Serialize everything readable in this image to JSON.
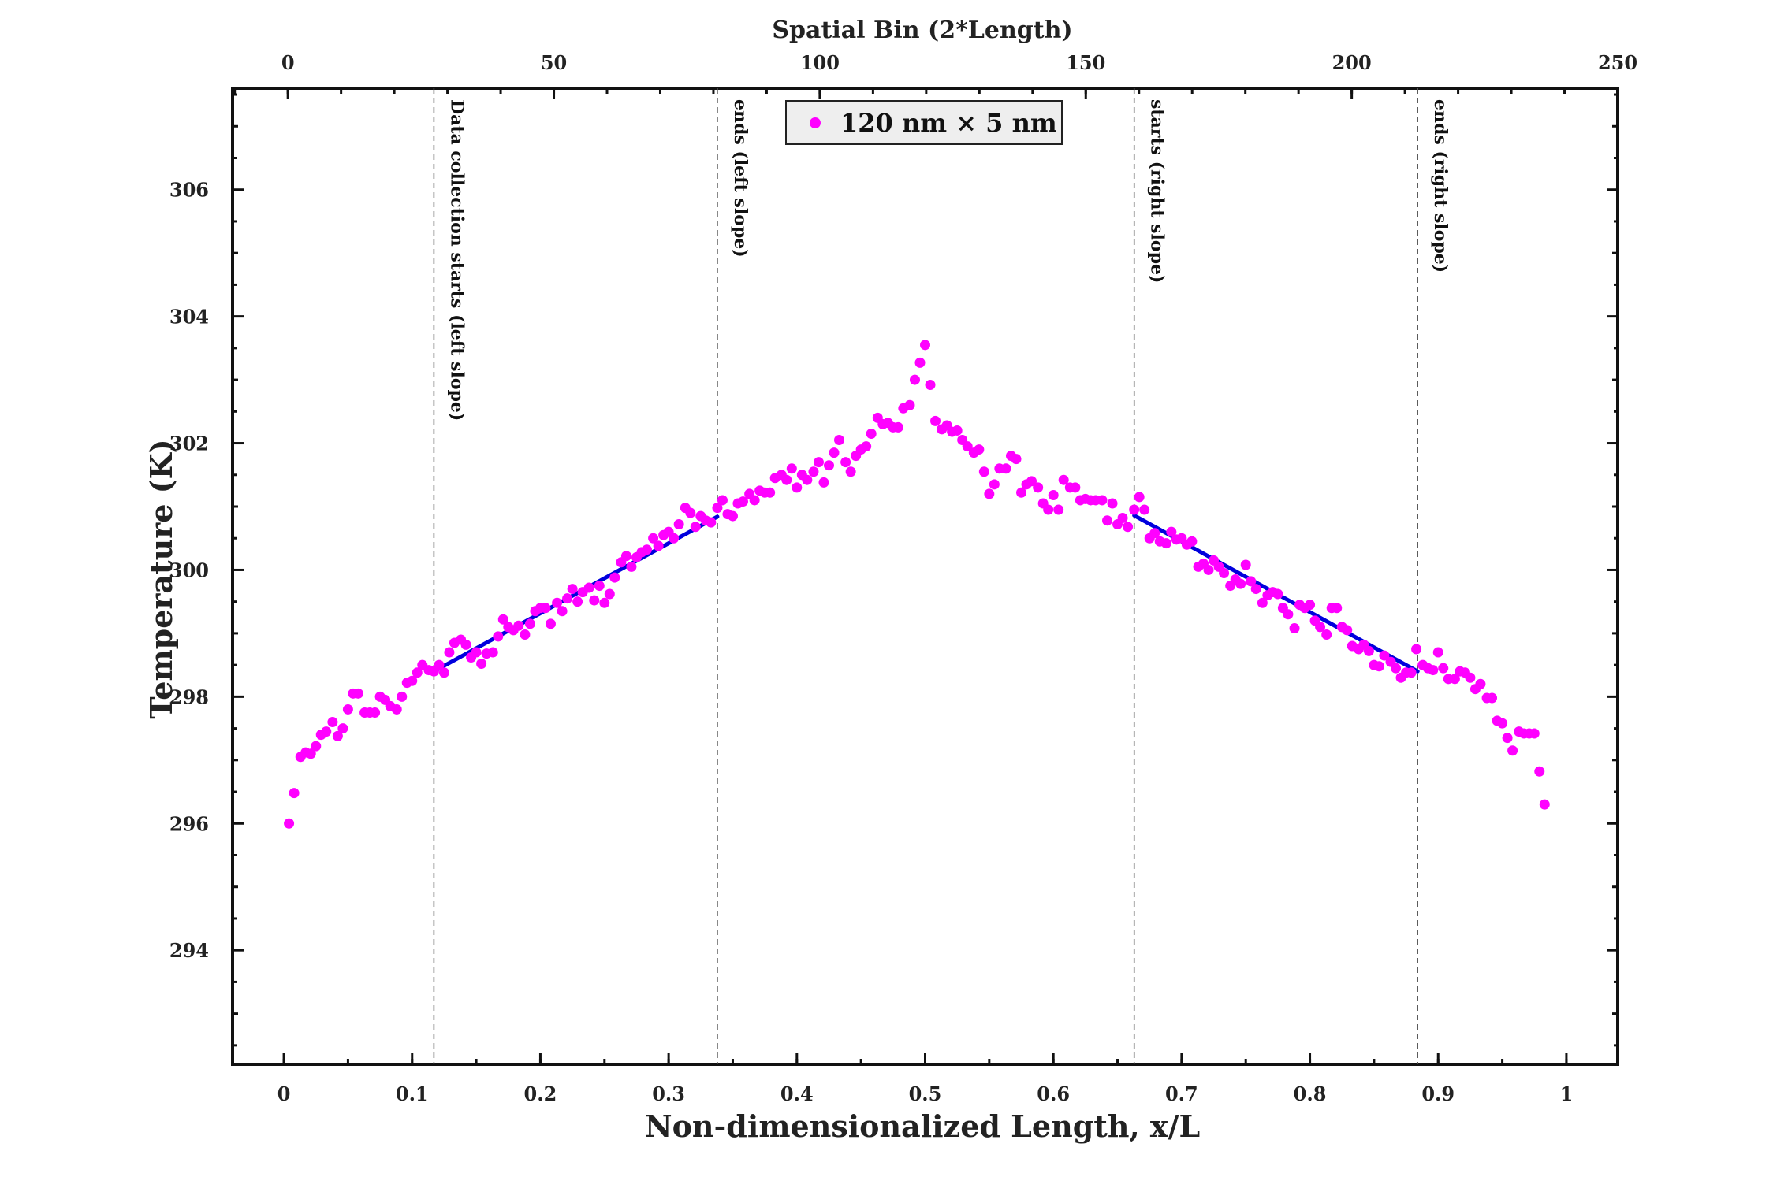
{
  "chart_data": {
    "type": "scatter",
    "xlabel": "Non-dimensionalized Length, x/L",
    "x2label": "Spatial Bin (2*Length)",
    "ylabel": "Temperature (K)",
    "xlim": [
      -0.04,
      1.04
    ],
    "x2lim": [
      -10.4,
      250
    ],
    "ylim": [
      292.2,
      307.6
    ],
    "x_ticks": [
      "0",
      "0.1",
      "0.2",
      "0.3",
      "0.4",
      "0.5",
      "0.6",
      "0.7",
      "0.8",
      "0.9",
      "1"
    ],
    "x2_ticks": [
      "0",
      "50",
      "100",
      "150",
      "200",
      "250"
    ],
    "y_ticks": [
      "294",
      "296",
      "298",
      "300",
      "302",
      "304",
      "306"
    ],
    "legend": {
      "label": "120 nm × 5 nm",
      "position": "top-center"
    },
    "marker_color": "#ff00ff",
    "fit_color": "#0000dd",
    "vlines": [
      {
        "x": 0.117,
        "label": "Data collection starts (left slope)"
      },
      {
        "x": 0.338,
        "label": "ends (left slope)"
      },
      {
        "x": 0.663,
        "label": "starts (right slope)"
      },
      {
        "x": 0.884,
        "label": "ends (right slope)"
      }
    ],
    "fits": [
      {
        "x": [
          0.117,
          0.338
        ],
        "y": [
          298.4,
          300.84
        ]
      },
      {
        "x": [
          0.663,
          0.884
        ],
        "y": [
          300.86,
          298.4
        ]
      }
    ],
    "series": [
      {
        "name": "120 nm × 5 nm",
        "points": [
          [
            0.004,
            296.0
          ],
          [
            0.008,
            296.48
          ],
          [
            0.013,
            297.05
          ],
          [
            0.017,
            297.12
          ],
          [
            0.021,
            297.1
          ],
          [
            0.025,
            297.22
          ],
          [
            0.029,
            297.4
          ],
          [
            0.033,
            297.45
          ],
          [
            0.038,
            297.6
          ],
          [
            0.042,
            297.38
          ],
          [
            0.046,
            297.5
          ],
          [
            0.05,
            297.8
          ],
          [
            0.054,
            298.05
          ],
          [
            0.058,
            298.05
          ],
          [
            0.063,
            297.75
          ],
          [
            0.067,
            297.75
          ],
          [
            0.071,
            297.75
          ],
          [
            0.075,
            298.0
          ],
          [
            0.079,
            297.95
          ],
          [
            0.083,
            297.85
          ],
          [
            0.088,
            297.8
          ],
          [
            0.092,
            298.0
          ],
          [
            0.096,
            298.22
          ],
          [
            0.1,
            298.25
          ],
          [
            0.104,
            298.38
          ],
          [
            0.108,
            298.5
          ],
          [
            0.113,
            298.42
          ],
          [
            0.117,
            298.4
          ],
          [
            0.121,
            298.5
          ],
          [
            0.125,
            298.38
          ],
          [
            0.129,
            298.7
          ],
          [
            0.133,
            298.85
          ],
          [
            0.138,
            298.9
          ],
          [
            0.142,
            298.82
          ],
          [
            0.146,
            298.62
          ],
          [
            0.15,
            298.7
          ],
          [
            0.154,
            298.52
          ],
          [
            0.158,
            298.68
          ],
          [
            0.163,
            298.7
          ],
          [
            0.167,
            298.95
          ],
          [
            0.171,
            299.22
          ],
          [
            0.175,
            299.1
          ],
          [
            0.179,
            299.05
          ],
          [
            0.183,
            299.12
          ],
          [
            0.188,
            298.98
          ],
          [
            0.192,
            299.15
          ],
          [
            0.196,
            299.35
          ],
          [
            0.2,
            299.4
          ],
          [
            0.204,
            299.4
          ],
          [
            0.208,
            299.15
          ],
          [
            0.213,
            299.48
          ],
          [
            0.217,
            299.35
          ],
          [
            0.221,
            299.55
          ],
          [
            0.225,
            299.7
          ],
          [
            0.229,
            299.5
          ],
          [
            0.233,
            299.65
          ],
          [
            0.238,
            299.72
          ],
          [
            0.242,
            299.52
          ],
          [
            0.246,
            299.75
          ],
          [
            0.25,
            299.48
          ],
          [
            0.254,
            299.62
          ],
          [
            0.258,
            299.88
          ],
          [
            0.263,
            300.12
          ],
          [
            0.267,
            300.22
          ],
          [
            0.271,
            300.05
          ],
          [
            0.275,
            300.2
          ],
          [
            0.279,
            300.28
          ],
          [
            0.283,
            300.32
          ],
          [
            0.288,
            300.5
          ],
          [
            0.292,
            300.38
          ],
          [
            0.296,
            300.55
          ],
          [
            0.3,
            300.6
          ],
          [
            0.304,
            300.5
          ],
          [
            0.308,
            300.72
          ],
          [
            0.313,
            300.98
          ],
          [
            0.317,
            300.9
          ],
          [
            0.321,
            300.68
          ],
          [
            0.325,
            300.85
          ],
          [
            0.329,
            300.78
          ],
          [
            0.333,
            300.75
          ],
          [
            0.338,
            300.98
          ],
          [
            0.342,
            301.1
          ],
          [
            0.346,
            300.88
          ],
          [
            0.35,
            300.85
          ],
          [
            0.354,
            301.05
          ],
          [
            0.358,
            301.08
          ],
          [
            0.363,
            301.2
          ],
          [
            0.367,
            301.1
          ],
          [
            0.371,
            301.25
          ],
          [
            0.375,
            301.22
          ],
          [
            0.379,
            301.22
          ],
          [
            0.383,
            301.45
          ],
          [
            0.388,
            301.5
          ],
          [
            0.392,
            301.42
          ],
          [
            0.396,
            301.6
          ],
          [
            0.4,
            301.3
          ],
          [
            0.404,
            301.5
          ],
          [
            0.408,
            301.42
          ],
          [
            0.413,
            301.55
          ],
          [
            0.417,
            301.7
          ],
          [
            0.421,
            301.38
          ],
          [
            0.425,
            301.65
          ],
          [
            0.429,
            301.85
          ],
          [
            0.433,
            302.05
          ],
          [
            0.438,
            301.7
          ],
          [
            0.442,
            301.55
          ],
          [
            0.446,
            301.8
          ],
          [
            0.45,
            301.9
          ],
          [
            0.454,
            301.95
          ],
          [
            0.458,
            302.15
          ],
          [
            0.463,
            302.4
          ],
          [
            0.467,
            302.3
          ],
          [
            0.471,
            302.32
          ],
          [
            0.475,
            302.25
          ],
          [
            0.479,
            302.25
          ],
          [
            0.483,
            302.55
          ],
          [
            0.488,
            302.6
          ],
          [
            0.492,
            303.0
          ],
          [
            0.496,
            303.27
          ],
          [
            0.5,
            303.55
          ],
          [
            0.504,
            302.92
          ],
          [
            0.508,
            302.35
          ],
          [
            0.513,
            302.22
          ],
          [
            0.517,
            302.28
          ],
          [
            0.521,
            302.18
          ],
          [
            0.525,
            302.2
          ],
          [
            0.529,
            302.05
          ],
          [
            0.533,
            301.95
          ],
          [
            0.538,
            301.85
          ],
          [
            0.542,
            301.9
          ],
          [
            0.546,
            301.55
          ],
          [
            0.55,
            301.2
          ],
          [
            0.554,
            301.35
          ],
          [
            0.558,
            301.6
          ],
          [
            0.563,
            301.6
          ],
          [
            0.567,
            301.8
          ],
          [
            0.571,
            301.75
          ],
          [
            0.575,
            301.22
          ],
          [
            0.579,
            301.35
          ],
          [
            0.583,
            301.4
          ],
          [
            0.588,
            301.3
          ],
          [
            0.592,
            301.05
          ],
          [
            0.596,
            300.95
          ],
          [
            0.6,
            301.18
          ],
          [
            0.604,
            300.95
          ],
          [
            0.608,
            301.42
          ],
          [
            0.613,
            301.3
          ],
          [
            0.617,
            301.3
          ],
          [
            0.621,
            301.1
          ],
          [
            0.625,
            301.12
          ],
          [
            0.629,
            301.1
          ],
          [
            0.633,
            301.1
          ],
          [
            0.638,
            301.1
          ],
          [
            0.642,
            300.78
          ],
          [
            0.646,
            301.05
          ],
          [
            0.65,
            300.72
          ],
          [
            0.654,
            300.82
          ],
          [
            0.658,
            300.68
          ],
          [
            0.663,
            300.95
          ],
          [
            0.667,
            301.15
          ],
          [
            0.671,
            300.95
          ],
          [
            0.675,
            300.5
          ],
          [
            0.679,
            300.58
          ],
          [
            0.683,
            300.45
          ],
          [
            0.688,
            300.42
          ],
          [
            0.692,
            300.6
          ],
          [
            0.696,
            300.48
          ],
          [
            0.7,
            300.5
          ],
          [
            0.704,
            300.4
          ],
          [
            0.708,
            300.45
          ],
          [
            0.713,
            300.05
          ],
          [
            0.717,
            300.1
          ],
          [
            0.721,
            300.0
          ],
          [
            0.725,
            300.15
          ],
          [
            0.729,
            300.05
          ],
          [
            0.733,
            299.95
          ],
          [
            0.738,
            299.75
          ],
          [
            0.742,
            299.85
          ],
          [
            0.746,
            299.78
          ],
          [
            0.75,
            300.08
          ],
          [
            0.754,
            299.82
          ],
          [
            0.758,
            299.7
          ],
          [
            0.763,
            299.48
          ],
          [
            0.767,
            299.6
          ],
          [
            0.771,
            299.65
          ],
          [
            0.775,
            299.62
          ],
          [
            0.779,
            299.4
          ],
          [
            0.783,
            299.3
          ],
          [
            0.788,
            299.08
          ],
          [
            0.792,
            299.45
          ],
          [
            0.796,
            299.4
          ],
          [
            0.8,
            299.45
          ],
          [
            0.804,
            299.2
          ],
          [
            0.808,
            299.1
          ],
          [
            0.813,
            298.98
          ],
          [
            0.817,
            299.4
          ],
          [
            0.821,
            299.4
          ],
          [
            0.825,
            299.1
          ],
          [
            0.829,
            299.05
          ],
          [
            0.833,
            298.8
          ],
          [
            0.838,
            298.75
          ],
          [
            0.842,
            298.82
          ],
          [
            0.846,
            298.72
          ],
          [
            0.85,
            298.5
          ],
          [
            0.854,
            298.48
          ],
          [
            0.858,
            298.65
          ],
          [
            0.863,
            298.55
          ],
          [
            0.867,
            298.45
          ],
          [
            0.871,
            298.3
          ],
          [
            0.875,
            298.38
          ],
          [
            0.879,
            298.38
          ],
          [
            0.883,
            298.75
          ],
          [
            0.888,
            298.5
          ],
          [
            0.892,
            298.45
          ],
          [
            0.896,
            298.42
          ],
          [
            0.9,
            298.7
          ],
          [
            0.904,
            298.45
          ],
          [
            0.908,
            298.28
          ],
          [
            0.913,
            298.28
          ],
          [
            0.917,
            298.4
          ],
          [
            0.921,
            298.38
          ],
          [
            0.925,
            298.3
          ],
          [
            0.929,
            298.12
          ],
          [
            0.933,
            298.2
          ],
          [
            0.938,
            297.98
          ],
          [
            0.942,
            297.98
          ],
          [
            0.946,
            297.62
          ],
          [
            0.95,
            297.58
          ],
          [
            0.954,
            297.35
          ],
          [
            0.958,
            297.15
          ],
          [
            0.963,
            297.45
          ],
          [
            0.967,
            297.42
          ],
          [
            0.971,
            297.42
          ],
          [
            0.975,
            297.42
          ],
          [
            0.979,
            296.82
          ],
          [
            0.983,
            296.3
          ]
        ]
      }
    ]
  }
}
